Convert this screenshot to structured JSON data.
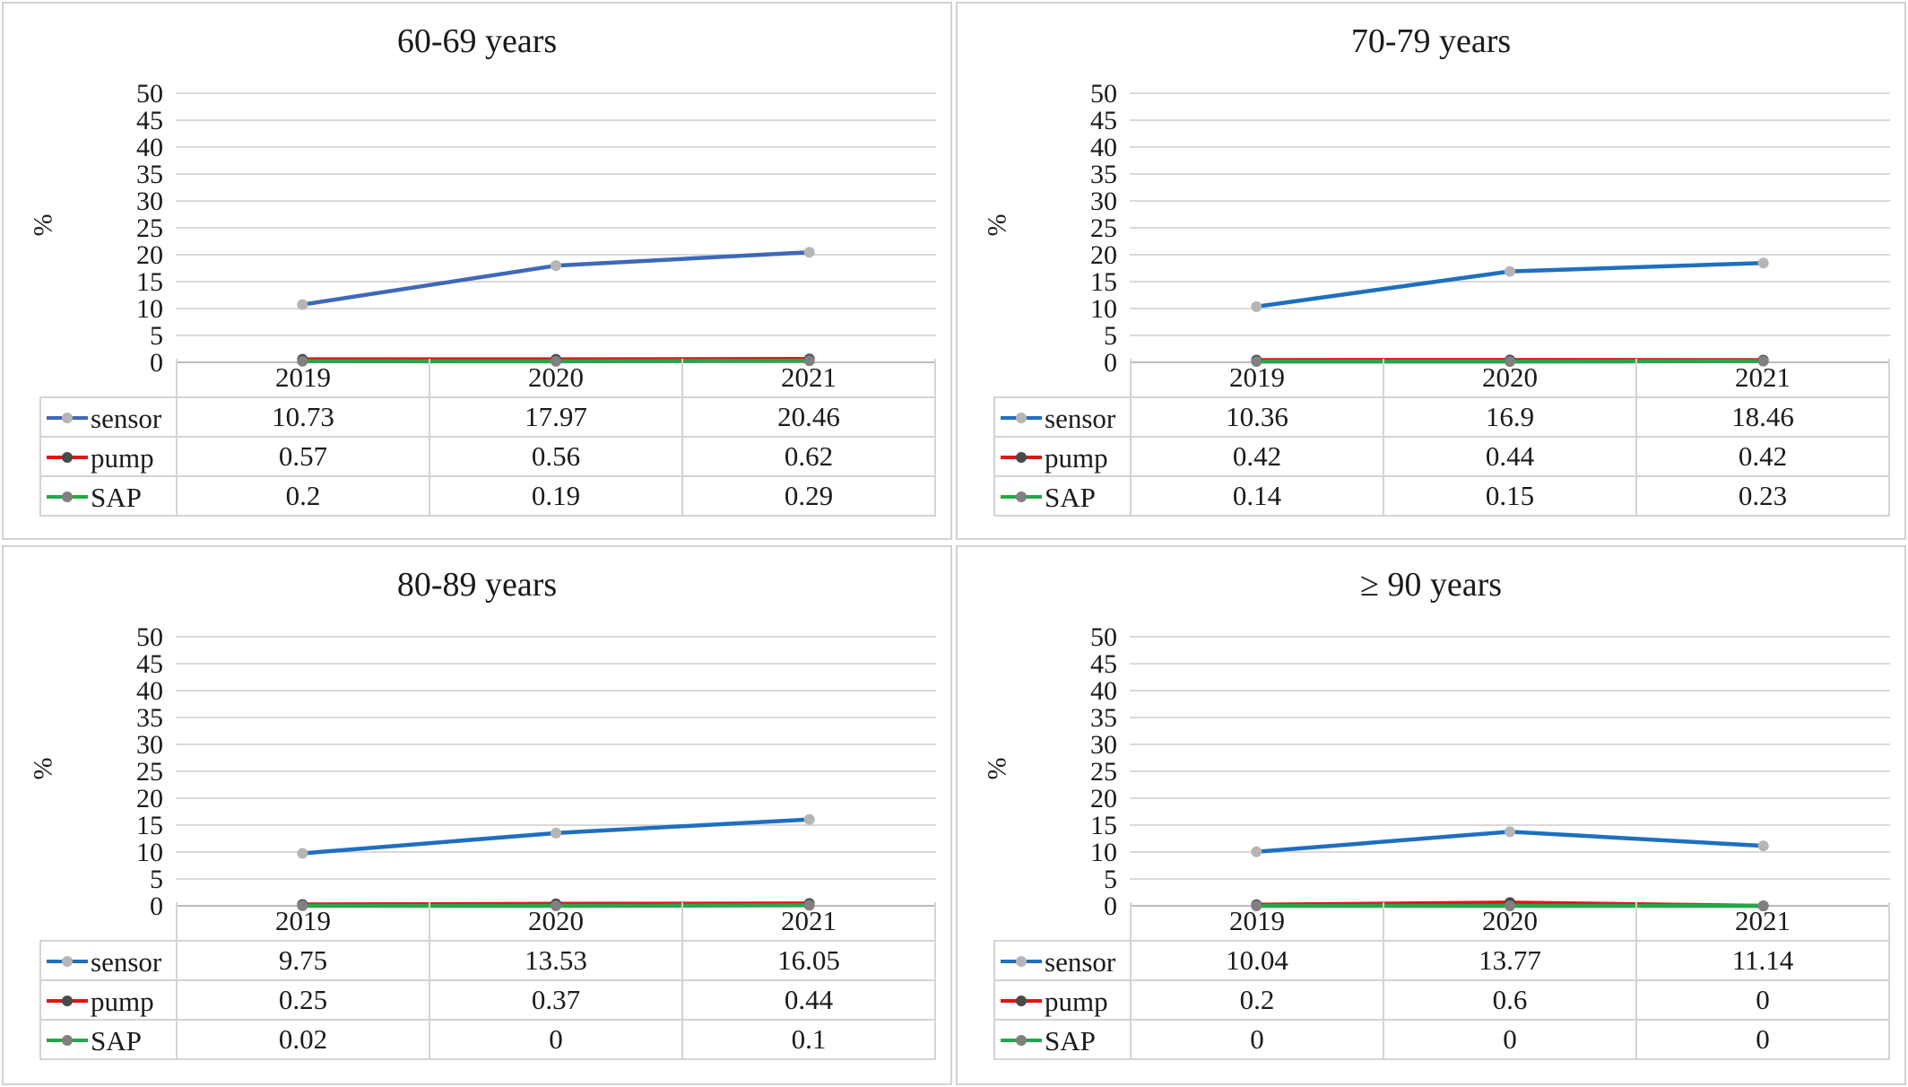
{
  "chart_data": [
    {
      "type": "line",
      "title": "60-69 years",
      "ylabel": "%",
      "ylim": [
        0,
        50
      ],
      "yticks": [
        0,
        5,
        10,
        15,
        20,
        25,
        30,
        35,
        40,
        45,
        50
      ],
      "categories": [
        "2019",
        "2020",
        "2021"
      ],
      "grid": true,
      "legend": "data table",
      "series": [
        {
          "name": "sensor",
          "color": "#3f68b8",
          "values": [
            10.73,
            17.97,
            20.46
          ]
        },
        {
          "name": "pump",
          "color": "#e31414",
          "values": [
            0.57,
            0.56,
            0.62
          ]
        },
        {
          "name": "SAP",
          "color": "#22a84a",
          "values": [
            0.2,
            0.19,
            0.29
          ]
        }
      ]
    },
    {
      "type": "line",
      "title": "70-79 years",
      "ylabel": "%",
      "ylim": [
        0,
        50
      ],
      "yticks": [
        0,
        5,
        10,
        15,
        20,
        25,
        30,
        35,
        40,
        45,
        50
      ],
      "categories": [
        "2019",
        "2020",
        "2021"
      ],
      "grid": true,
      "legend": "data table",
      "series": [
        {
          "name": "sensor",
          "color": "#1f6fbf",
          "values": [
            10.36,
            16.9,
            18.46
          ]
        },
        {
          "name": "pump",
          "color": "#e31414",
          "values": [
            0.42,
            0.44,
            0.42
          ]
        },
        {
          "name": "SAP",
          "color": "#22a84a",
          "values": [
            0.14,
            0.15,
            0.23
          ]
        }
      ]
    },
    {
      "type": "line",
      "title": "80-89 years",
      "ylabel": "%",
      "ylim": [
        0,
        50
      ],
      "yticks": [
        0,
        5,
        10,
        15,
        20,
        25,
        30,
        35,
        40,
        45,
        50
      ],
      "categories": [
        "2019",
        "2020",
        "2021"
      ],
      "grid": true,
      "legend": "data table",
      "series": [
        {
          "name": "sensor",
          "color": "#1f6fbf",
          "values": [
            9.75,
            13.53,
            16.05
          ]
        },
        {
          "name": "pump",
          "color": "#e31414",
          "values": [
            0.25,
            0.37,
            0.44
          ]
        },
        {
          "name": "SAP",
          "color": "#22a84a",
          "values": [
            0.02,
            0,
            0.1
          ]
        }
      ]
    },
    {
      "type": "line",
      "title": "≥ 90 years",
      "ylabel": "%",
      "ylim": [
        0,
        50
      ],
      "yticks": [
        0,
        5,
        10,
        15,
        20,
        25,
        30,
        35,
        40,
        45,
        50
      ],
      "categories": [
        "2019",
        "2020",
        "2021"
      ],
      "grid": true,
      "legend": "data table",
      "series": [
        {
          "name": "sensor",
          "color": "#1f6fbf",
          "values": [
            10.04,
            13.77,
            11.14
          ]
        },
        {
          "name": "pump",
          "color": "#e31414",
          "values": [
            0.2,
            0.6,
            0
          ]
        },
        {
          "name": "SAP",
          "color": "#22a84a",
          "values": [
            0,
            0,
            0
          ]
        }
      ]
    }
  ]
}
